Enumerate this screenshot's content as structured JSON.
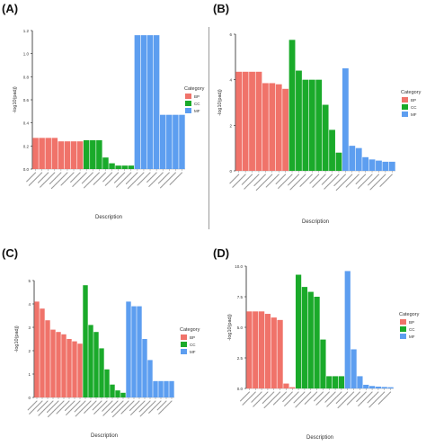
{
  "colors": {
    "BP": "#f0736a",
    "CC": "#1aaa2a",
    "MF": "#5d9ef0",
    "axis": "#222222",
    "grid": "#ffffff",
    "text": "#333333"
  },
  "chart_data": [
    {
      "type": "bar",
      "panel_label": "(A)",
      "xlabel": "Description",
      "ylabel": "-log10(padj)",
      "ylim": [
        0,
        1.2
      ],
      "yticks": [
        "0.0",
        "0.2",
        "0.4",
        "0.6",
        "0.8",
        "1.0",
        "1.2"
      ],
      "legend_title": "Category",
      "legend_items": [
        "BP",
        "CC",
        "MF"
      ],
      "legend_position": "right",
      "bars": [
        {
          "category": "BP",
          "value": 0.27
        },
        {
          "category": "BP",
          "value": 0.27
        },
        {
          "category": "BP",
          "value": 0.27
        },
        {
          "category": "BP",
          "value": 0.27
        },
        {
          "category": "BP",
          "value": 0.24
        },
        {
          "category": "BP",
          "value": 0.24
        },
        {
          "category": "BP",
          "value": 0.24
        },
        {
          "category": "BP",
          "value": 0.24
        },
        {
          "category": "CC",
          "value": 0.25
        },
        {
          "category": "CC",
          "value": 0.25
        },
        {
          "category": "CC",
          "value": 0.25
        },
        {
          "category": "CC",
          "value": 0.1
        },
        {
          "category": "CC",
          "value": 0.05
        },
        {
          "category": "CC",
          "value": 0.03
        },
        {
          "category": "CC",
          "value": 0.03
        },
        {
          "category": "CC",
          "value": 0.03
        },
        {
          "category": "MF",
          "value": 1.16
        },
        {
          "category": "MF",
          "value": 1.16
        },
        {
          "category": "MF",
          "value": 1.16
        },
        {
          "category": "MF",
          "value": 1.16
        },
        {
          "category": "MF",
          "value": 0.47
        },
        {
          "category": "MF",
          "value": 0.47
        },
        {
          "category": "MF",
          "value": 0.47
        },
        {
          "category": "MF",
          "value": 0.47
        }
      ]
    },
    {
      "type": "bar",
      "panel_label": "(B)",
      "xlabel": "Description",
      "ylabel": "-log10(padj)",
      "ylim": [
        0,
        6
      ],
      "yticks": [
        "0",
        "2",
        "4",
        "6"
      ],
      "legend_title": "Category",
      "legend_items": [
        "BP",
        "CC",
        "MF"
      ],
      "legend_position": "right",
      "bars": [
        {
          "category": "BP",
          "value": 4.35
        },
        {
          "category": "BP",
          "value": 4.35
        },
        {
          "category": "BP",
          "value": 4.35
        },
        {
          "category": "BP",
          "value": 4.35
        },
        {
          "category": "BP",
          "value": 3.85
        },
        {
          "category": "BP",
          "value": 3.85
        },
        {
          "category": "BP",
          "value": 3.8
        },
        {
          "category": "BP",
          "value": 3.6
        },
        {
          "category": "CC",
          "value": 5.75
        },
        {
          "category": "CC",
          "value": 4.4
        },
        {
          "category": "CC",
          "value": 4.0
        },
        {
          "category": "CC",
          "value": 4.0
        },
        {
          "category": "CC",
          "value": 4.0
        },
        {
          "category": "CC",
          "value": 2.9
        },
        {
          "category": "CC",
          "value": 1.8
        },
        {
          "category": "CC",
          "value": 0.8
        },
        {
          "category": "MF",
          "value": 4.5
        },
        {
          "category": "MF",
          "value": 1.1
        },
        {
          "category": "MF",
          "value": 1.0
        },
        {
          "category": "MF",
          "value": 0.6
        },
        {
          "category": "MF",
          "value": 0.5
        },
        {
          "category": "MF",
          "value": 0.45
        },
        {
          "category": "MF",
          "value": 0.4
        },
        {
          "category": "MF",
          "value": 0.4
        }
      ]
    },
    {
      "type": "bar",
      "panel_label": "(C)",
      "xlabel": "Description",
      "ylabel": "-log10(padj)",
      "ylim": [
        0,
        5
      ],
      "yticks": [
        "0",
        "1",
        "2",
        "3",
        "4",
        "5"
      ],
      "legend_title": "Category",
      "legend_items": [
        "BP",
        "CC",
        "MF"
      ],
      "legend_position": "right",
      "bars": [
        {
          "category": "BP",
          "value": 4.1
        },
        {
          "category": "BP",
          "value": 3.8
        },
        {
          "category": "BP",
          "value": 3.3
        },
        {
          "category": "BP",
          "value": 2.9
        },
        {
          "category": "BP",
          "value": 2.8
        },
        {
          "category": "BP",
          "value": 2.7
        },
        {
          "category": "BP",
          "value": 2.5
        },
        {
          "category": "BP",
          "value": 2.4
        },
        {
          "category": "BP",
          "value": 2.3
        },
        {
          "category": "CC",
          "value": 4.8
        },
        {
          "category": "CC",
          "value": 3.1
        },
        {
          "category": "CC",
          "value": 2.8
        },
        {
          "category": "CC",
          "value": 2.1
        },
        {
          "category": "CC",
          "value": 1.2
        },
        {
          "category": "CC",
          "value": 0.55
        },
        {
          "category": "CC",
          "value": 0.3
        },
        {
          "category": "CC",
          "value": 0.2
        },
        {
          "category": "MF",
          "value": 4.1
        },
        {
          "category": "MF",
          "value": 3.9
        },
        {
          "category": "MF",
          "value": 3.9
        },
        {
          "category": "MF",
          "value": 2.5
        },
        {
          "category": "MF",
          "value": 1.6
        },
        {
          "category": "MF",
          "value": 0.7
        },
        {
          "category": "MF",
          "value": 0.7
        },
        {
          "category": "MF",
          "value": 0.7
        },
        {
          "category": "MF",
          "value": 0.7
        }
      ]
    },
    {
      "type": "bar",
      "panel_label": "(D)",
      "xlabel": "Description",
      "ylabel": "-log10(padj)",
      "ylim": [
        0,
        10
      ],
      "yticks": [
        "0.0",
        "2.5",
        "5.0",
        "7.5",
        "10.0"
      ],
      "legend_title": "Category",
      "legend_items": [
        "BP",
        "CC",
        "MF"
      ],
      "legend_position": "right",
      "bars": [
        {
          "category": "BP",
          "value": 6.3
        },
        {
          "category": "BP",
          "value": 6.3
        },
        {
          "category": "BP",
          "value": 6.3
        },
        {
          "category": "BP",
          "value": 6.1
        },
        {
          "category": "BP",
          "value": 5.8
        },
        {
          "category": "BP",
          "value": 5.6
        },
        {
          "category": "BP",
          "value": 0.4
        },
        {
          "category": "BP",
          "value": 0.1
        },
        {
          "category": "CC",
          "value": 9.3
        },
        {
          "category": "CC",
          "value": 8.3
        },
        {
          "category": "CC",
          "value": 7.9
        },
        {
          "category": "CC",
          "value": 7.5
        },
        {
          "category": "CC",
          "value": 4.0
        },
        {
          "category": "CC",
          "value": 1.0
        },
        {
          "category": "CC",
          "value": 1.0
        },
        {
          "category": "CC",
          "value": 1.0
        },
        {
          "category": "MF",
          "value": 9.6
        },
        {
          "category": "MF",
          "value": 3.2
        },
        {
          "category": "MF",
          "value": 1.0
        },
        {
          "category": "MF",
          "value": 0.3
        },
        {
          "category": "MF",
          "value": 0.2
        },
        {
          "category": "MF",
          "value": 0.15
        },
        {
          "category": "MF",
          "value": 0.12
        },
        {
          "category": "MF",
          "value": 0.1
        }
      ]
    }
  ]
}
